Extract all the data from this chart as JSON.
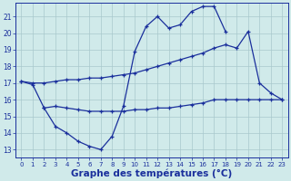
{
  "bg_color": "#d0eaea",
  "line_color": "#1a2f9c",
  "grid_color": "#a8c8cc",
  "xlabel": "Graphe des températures (°C)",
  "xlabel_fontsize": 7.5,
  "ylim": [
    12.5,
    21.8
  ],
  "xlim": [
    -0.5,
    23.5
  ],
  "yticks": [
    13,
    14,
    15,
    16,
    17,
    18,
    19,
    20,
    21
  ],
  "xticks": [
    0,
    1,
    2,
    3,
    4,
    5,
    6,
    7,
    8,
    9,
    10,
    11,
    12,
    13,
    14,
    15,
    16,
    17,
    18,
    19,
    20,
    21,
    22,
    23
  ],
  "series": [
    {
      "x": [
        0,
        1,
        2,
        3,
        4,
        5,
        6,
        7,
        8,
        9,
        10,
        11,
        12,
        13,
        14,
        15,
        16,
        17,
        18,
        19,
        20,
        21,
        22,
        23
      ],
      "y": [
        17.1,
        16.9,
        15.5,
        14.4,
        14.0,
        13.5,
        13.2,
        13.0,
        13.8,
        15.6,
        18.9,
        20.4,
        21.0,
        20.3,
        20.5,
        21.3,
        21.6,
        21.6,
        20.1,
        null,
        null,
        null,
        null,
        null
      ]
    },
    {
      "x": [
        0,
        1,
        2,
        3,
        4,
        5,
        6,
        7,
        8,
        9,
        10,
        11,
        12,
        13,
        14,
        15,
        16,
        17,
        18,
        19,
        20,
        21,
        22,
        23
      ],
      "y": [
        17.1,
        17.0,
        17.0,
        17.1,
        17.2,
        17.2,
        17.3,
        17.3,
        17.4,
        17.5,
        17.6,
        17.8,
        18.0,
        18.2,
        18.4,
        18.6,
        18.8,
        19.1,
        19.3,
        19.1,
        20.1,
        17.0,
        16.4,
        16.0
      ]
    },
    {
      "x": [
        0,
        1,
        2,
        3,
        4,
        5,
        6,
        7,
        8,
        9,
        10,
        11,
        12,
        13,
        14,
        15,
        16,
        17,
        18,
        19,
        20,
        21,
        22,
        23
      ],
      "y": [
        null,
        null,
        15.5,
        15.6,
        15.5,
        15.4,
        15.3,
        15.3,
        15.3,
        15.3,
        15.4,
        15.4,
        15.5,
        15.5,
        15.6,
        15.7,
        15.8,
        16.0,
        16.0,
        16.0,
        16.0,
        16.0,
        16.0,
        16.0
      ]
    }
  ]
}
